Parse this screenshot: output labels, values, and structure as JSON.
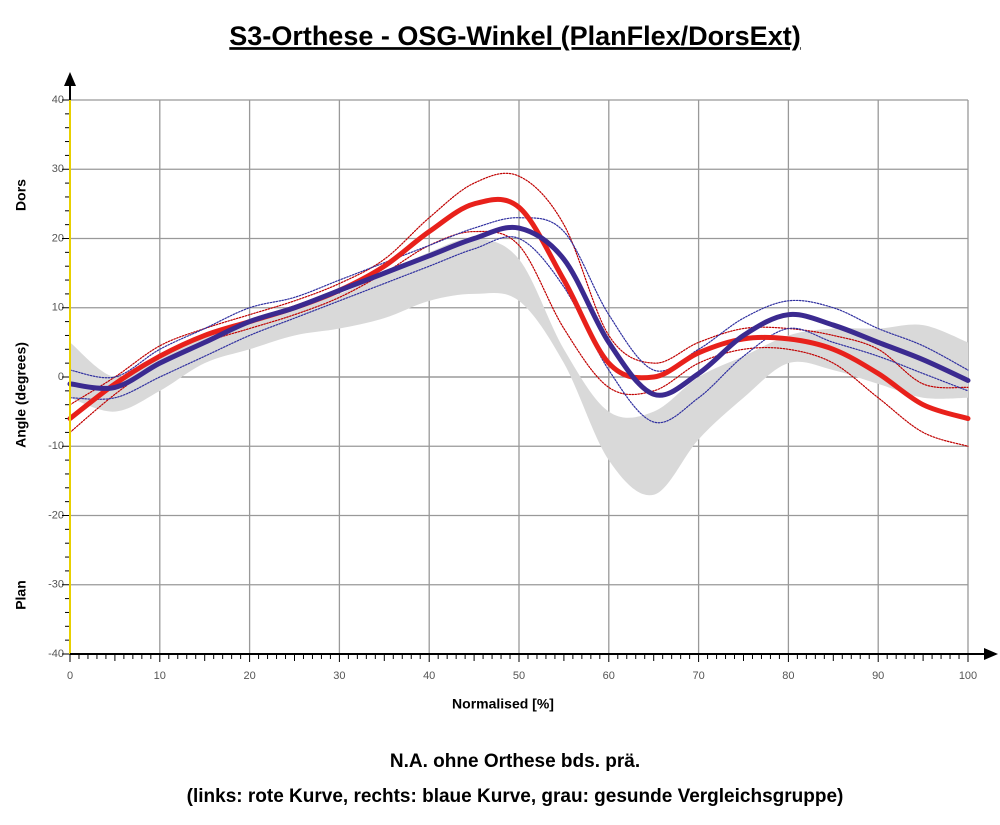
{
  "chart_data": {
    "type": "line",
    "title": "S3-Orthese - OSG-Winkel (PlanFlex/DorsExt)",
    "caption": [
      "N.A. ohne Orthese bds. prä.",
      "(links: rote Kurve, rechts: blaue Kurve, grau: gesunde Vergleichsgruppe)"
    ],
    "x_label": "Normalised [%]",
    "y_label": "Angle (degrees)",
    "y_top_label": "Dors",
    "y_bottom_label": "Plan",
    "x": [
      0,
      5,
      10,
      15,
      20,
      25,
      30,
      35,
      40,
      45,
      50,
      55,
      60,
      65,
      70,
      75,
      80,
      85,
      90,
      95,
      100
    ],
    "band": {
      "color": "#d9d9d9",
      "upper": [
        5,
        0,
        3,
        6,
        8,
        10,
        12,
        15,
        18,
        20,
        17,
        4,
        -5,
        -5,
        0,
        3,
        6,
        7,
        7,
        7.5,
        5
      ],
      "lower": [
        -3,
        -5,
        -2,
        2,
        4,
        6,
        7,
        8.5,
        11,
        12,
        11,
        2,
        -12,
        -17,
        -9,
        -3,
        2,
        1,
        -1,
        -3,
        -3
      ]
    },
    "series": [
      {
        "color": "#c00000",
        "style": "dotted",
        "values": [
          -4,
          0,
          4.5,
          7,
          9,
          11,
          13.5,
          17,
          23,
          28,
          29,
          22,
          6,
          2,
          5,
          7,
          7,
          6,
          4,
          -1,
          -1.5
        ]
      },
      {
        "color": "#c00000",
        "style": "dotted",
        "values": [
          -8,
          -2.5,
          2,
          5,
          7,
          9,
          11.5,
          15,
          19,
          21,
          19,
          7,
          -1.5,
          -2,
          2,
          4,
          4,
          2,
          -3,
          -8,
          -10
        ]
      },
      {
        "color": "#3030a0",
        "style": "dotted",
        "values": [
          1,
          0,
          4,
          7,
          10,
          11.5,
          14,
          16.5,
          19,
          21.5,
          23,
          21,
          9,
          1,
          4,
          8.5,
          11,
          10,
          7,
          4.5,
          1
        ]
      },
      {
        "color": "#3030a0",
        "style": "dotted",
        "values": [
          -3,
          -3,
          0,
          3,
          6,
          8.5,
          11,
          13.5,
          16,
          18.5,
          20,
          13,
          1,
          -6.5,
          -3,
          3,
          7,
          5,
          3,
          0.5,
          -2
        ]
      },
      {
        "color": "#e8211b",
        "style": "solid",
        "values": [
          -6,
          -1,
          3,
          6,
          8,
          10,
          12.5,
          16,
          21,
          25,
          24.5,
          14,
          2,
          0,
          3.5,
          5.5,
          5.5,
          4,
          0.5,
          -4,
          -6
        ]
      },
      {
        "color": "#3b2a90",
        "style": "solid",
        "values": [
          -1,
          -1.5,
          2,
          5,
          8,
          10,
          12.5,
          15,
          17.5,
          20,
          21.5,
          17,
          5,
          -2.5,
          0.5,
          6,
          9,
          7.5,
          5,
          2.5,
          -0.5
        ]
      }
    ],
    "xlim": [
      0,
      100
    ],
    "xticks": [
      0,
      10,
      20,
      30,
      40,
      50,
      60,
      70,
      80,
      90,
      100
    ],
    "ylim": [
      -40,
      40
    ],
    "yticks": [
      -40,
      -30,
      -20,
      -10,
      0,
      10,
      20,
      30,
      40
    ],
    "grid": true
  }
}
